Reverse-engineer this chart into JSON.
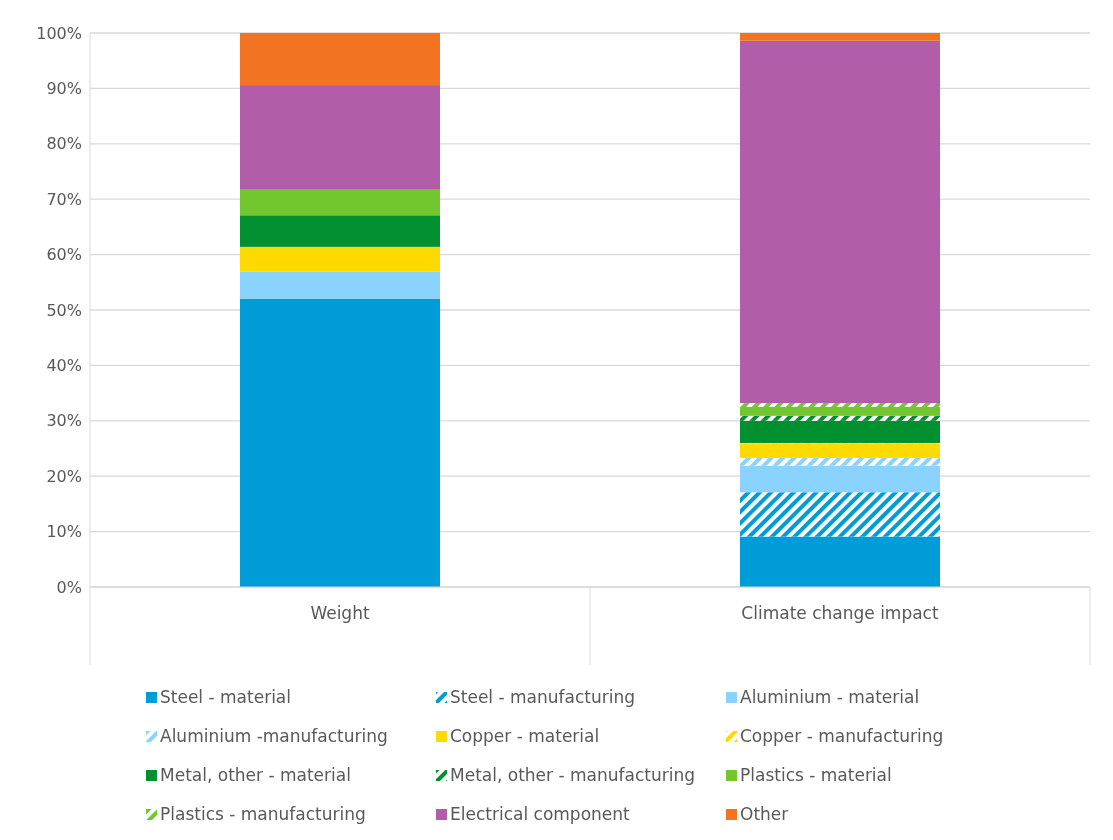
{
  "chart_data": {
    "type": "bar",
    "stacked": true,
    "categories": [
      "Weight",
      "Climate change impact"
    ],
    "ylim": [
      0,
      100
    ],
    "yticks": [
      {
        "value": 0,
        "label": "0%"
      },
      {
        "value": 10,
        "label": "10%"
      },
      {
        "value": 20,
        "label": "20%"
      },
      {
        "value": 30,
        "label": "30%"
      },
      {
        "value": 40,
        "label": "40%"
      },
      {
        "value": 50,
        "label": "50%"
      },
      {
        "value": 60,
        "label": "60%"
      },
      {
        "value": 70,
        "label": "70%"
      },
      {
        "value": 80,
        "label": "80%"
      },
      {
        "value": 90,
        "label": "90%"
      },
      {
        "value": 100,
        "label": "100%"
      }
    ],
    "grid": "y",
    "legend": "bottom",
    "series": [
      {
        "name": "Steel - material",
        "color": "#009cd8",
        "values": [
          52.0,
          9.1
        ]
      },
      {
        "name": "Steel - manufacturing",
        "color": "#009cd8",
        "values": [
          0,
          8.0
        ]
      },
      {
        "name": "Aluminium - material",
        "color": "#8ad2ff",
        "values": [
          4.9,
          4.8
        ]
      },
      {
        "name": "Aluminium -manufacturing",
        "color": "#8ad2ff",
        "values": [
          0,
          1.4
        ]
      },
      {
        "name": "Copper - material",
        "color": "#ffda00",
        "values": [
          4.5,
          2.6
        ]
      },
      {
        "name": "Copper - manufacturing",
        "color": "#ffda00",
        "values": [
          0,
          0.1
        ]
      },
      {
        "name": "Metal, other - material",
        "color": "#009030",
        "values": [
          5.7,
          4.0
        ]
      },
      {
        "name": "Metal, other - manufacturing",
        "color": "#009030",
        "values": [
          0,
          0.9
        ]
      },
      {
        "name": "Plastics - material",
        "color": "#72c72f",
        "values": [
          4.6,
          1.6
        ]
      },
      {
        "name": "Plastics - manufacturing",
        "color": "#72c72f",
        "values": [
          0,
          0.7
        ]
      },
      {
        "name": "Electrical component",
        "color": "#b25da9",
        "values": [
          18.9,
          65.4
        ]
      },
      {
        "name": "Other",
        "color": "#f27322",
        "values": [
          9.4,
          1.4
        ]
      }
    ]
  }
}
